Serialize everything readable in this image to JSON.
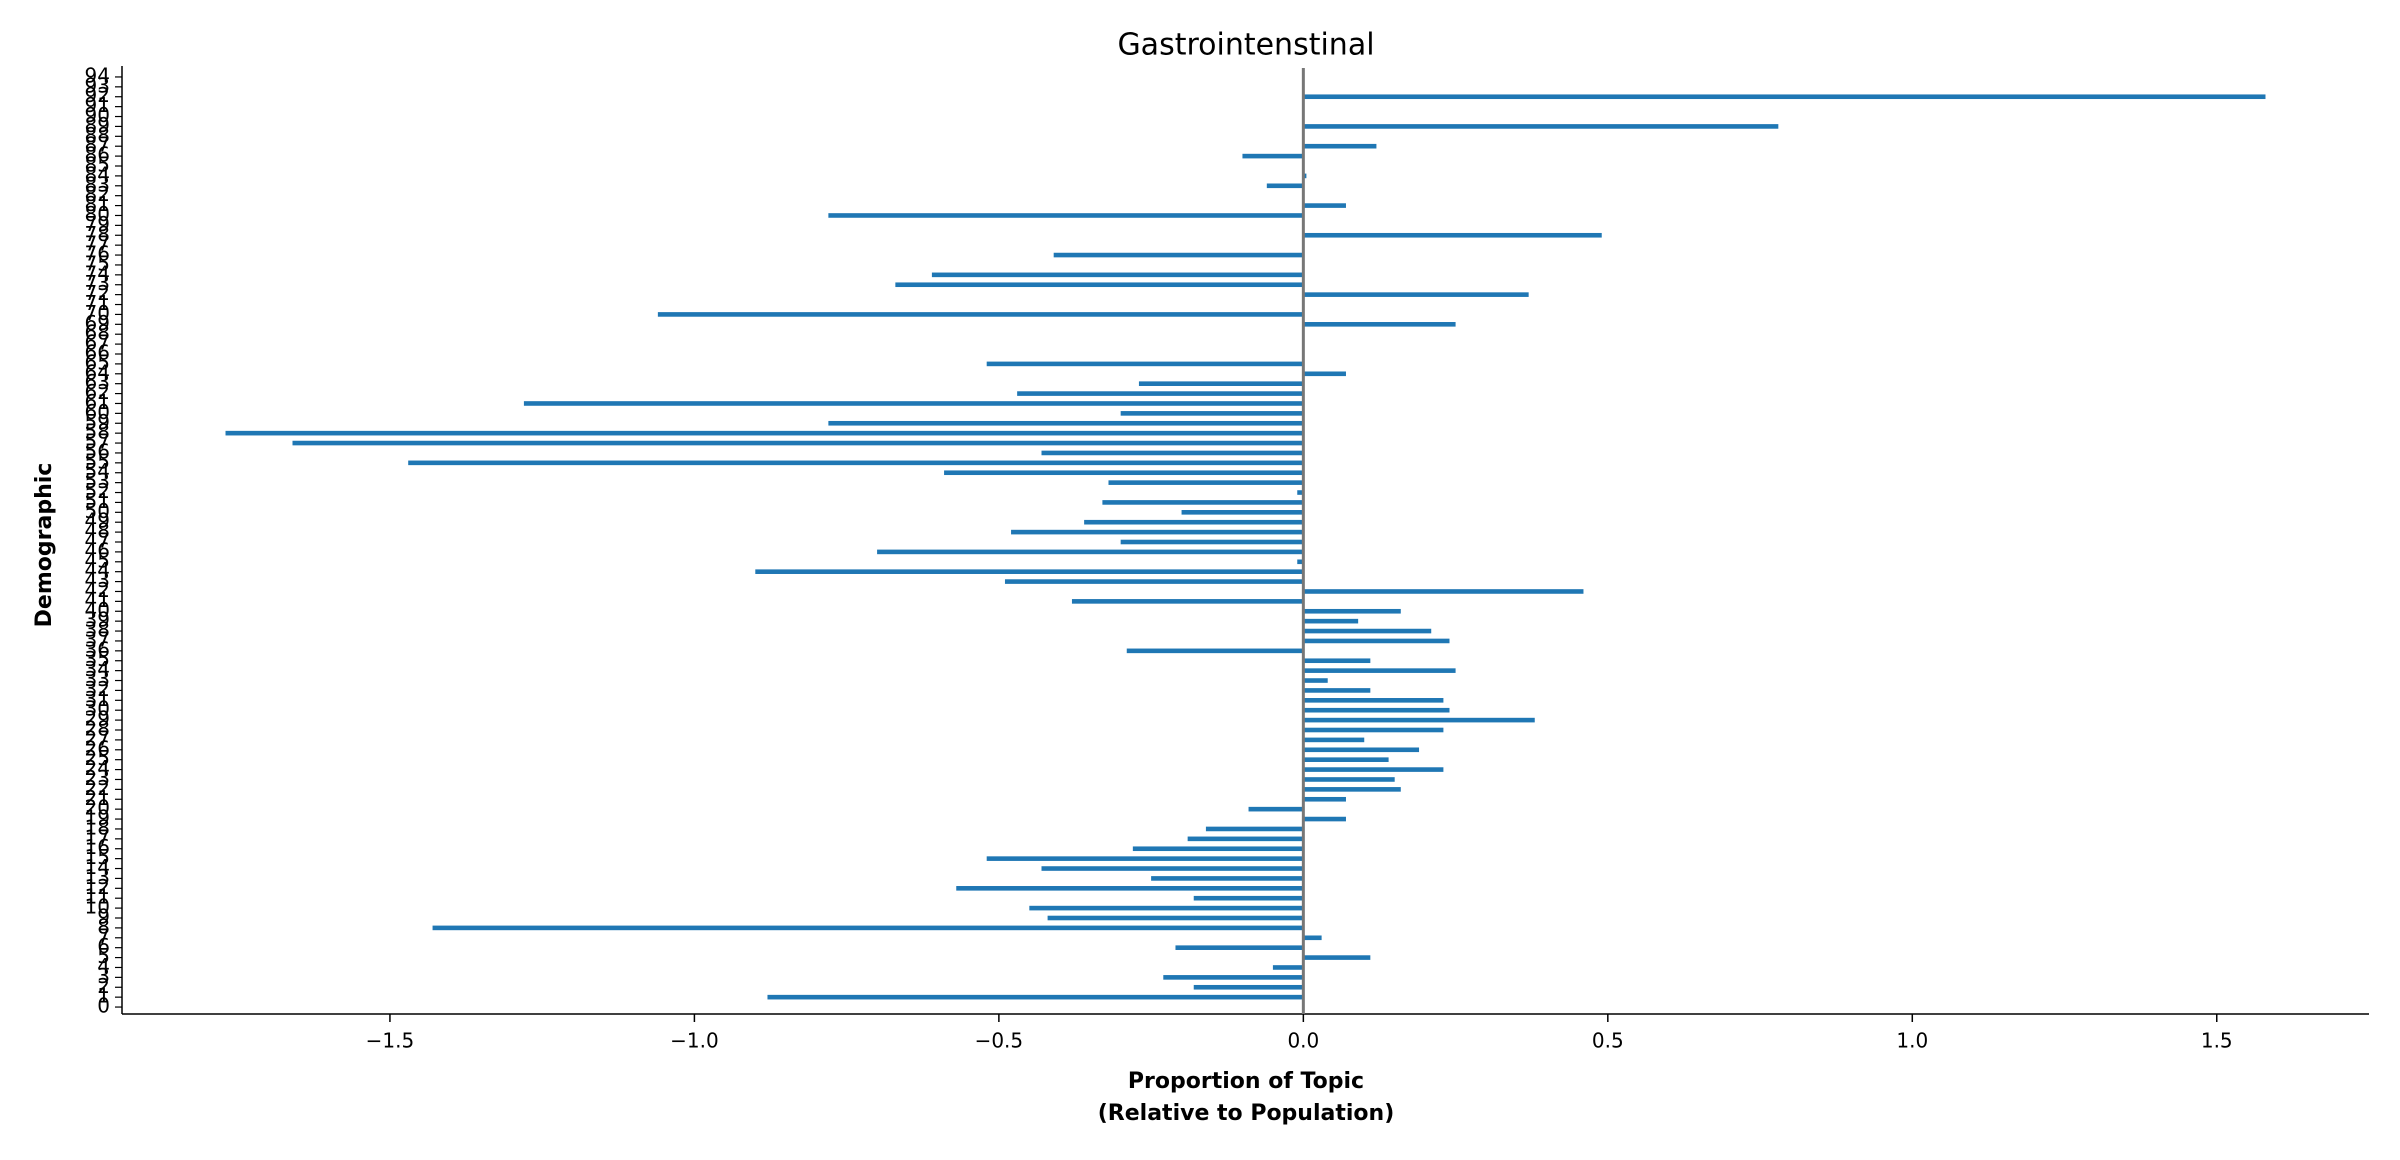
{
  "chart_data": {
    "type": "barh",
    "title": "Gastrointenstinal",
    "x_label": [
      "Proportion of Topic",
      "(Relative to Population)"
    ],
    "y_label": "Demographic",
    "color": "#1f77b4",
    "categories": [
      0,
      1,
      2,
      3,
      4,
      5,
      6,
      7,
      8,
      9,
      10,
      11,
      12,
      13,
      14,
      15,
      16,
      17,
      18,
      19,
      20,
      21,
      22,
      23,
      24,
      25,
      26,
      27,
      28,
      29,
      30,
      31,
      32,
      33,
      34,
      35,
      36,
      37,
      38,
      39,
      40,
      41,
      42,
      43,
      44,
      45,
      46,
      47,
      48,
      49,
      50,
      51,
      52,
      53,
      54,
      55,
      56,
      57,
      58,
      59,
      60,
      61,
      62,
      63,
      64,
      65,
      66,
      67,
      68,
      69,
      70,
      71,
      72,
      73,
      74,
      75,
      76,
      77,
      78,
      79,
      80,
      81,
      82,
      83,
      84,
      85,
      86,
      87,
      88,
      89,
      90,
      91,
      92,
      93,
      94
    ],
    "values": [
      0,
      -0.88,
      -0.18,
      -0.23,
      -0.05,
      0.11,
      -0.21,
      0.03,
      -1.43,
      -0.42,
      -0.45,
      -0.18,
      -0.57,
      -0.25,
      -0.43,
      -0.52,
      -0.28,
      -0.19,
      -0.16,
      0.07,
      -0.09,
      0.07,
      0.16,
      0.15,
      0.23,
      0.14,
      0.19,
      0.1,
      0.23,
      0.38,
      0.24,
      0.23,
      0.11,
      0.04,
      0.25,
      0.11,
      -0.29,
      0.24,
      0.21,
      0.09,
      0.16,
      -0.38,
      0.46,
      -0.49,
      -0.9,
      -0.01,
      -0.7,
      -0.3,
      -0.48,
      -0.36,
      -0.2,
      -0.33,
      -0.01,
      -0.32,
      -0.59,
      -1.47,
      -0.43,
      -1.66,
      -1.77,
      -0.78,
      -0.3,
      -1.28,
      -0.47,
      -0.27,
      0.07,
      -0.52,
      0,
      0,
      0,
      0.25,
      -1.06,
      0,
      0.37,
      -0.67,
      -0.61,
      0,
      -0.41,
      0,
      0.49,
      0,
      -0.78,
      0.07,
      0,
      -0.06,
      0.005,
      0,
      -0.1,
      0.12,
      0,
      0.78,
      0,
      0,
      1.58,
      0,
      0
    ],
    "xlim": [
      -1.94,
      1.75
    ],
    "xticks": [
      {
        "value": -1.5,
        "label": "−1.5"
      },
      {
        "value": -1.0,
        "label": "−1.0"
      },
      {
        "value": -0.5,
        "label": "−0.5"
      },
      {
        "value": 0,
        "label": "0.0"
      },
      {
        "value": 0.5,
        "label": "0.5"
      },
      {
        "value": 1.0,
        "label": "1.0"
      },
      {
        "value": 1.5,
        "label": "1.5"
      }
    ]
  }
}
